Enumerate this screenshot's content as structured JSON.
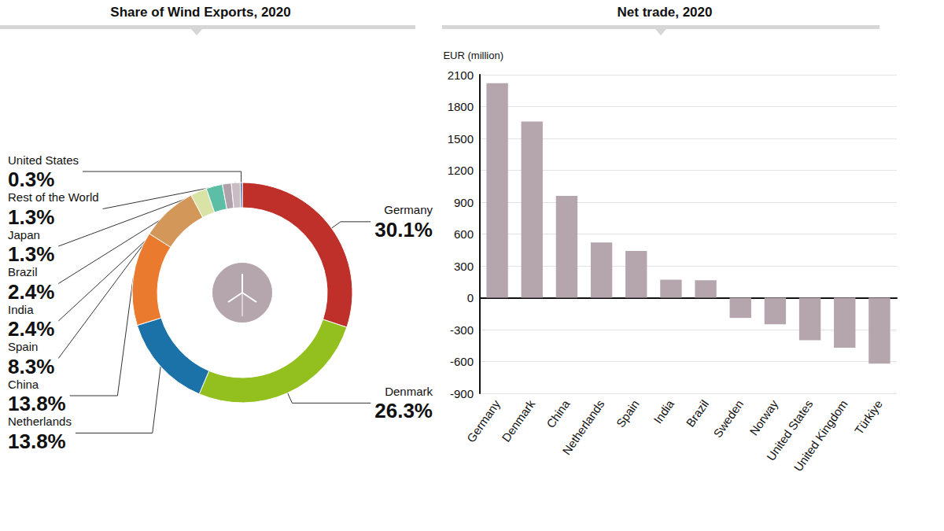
{
  "chart_data": [
    {
      "type": "pie",
      "title": "Share of Wind Exports, 2020",
      "categories": [
        "Germany",
        "Denmark",
        "Netherlands",
        "China",
        "Spain",
        "India",
        "Brazil",
        "Japan",
        "Rest of the World",
        "United States"
      ],
      "values": [
        30.1,
        26.3,
        13.8,
        13.8,
        8.3,
        2.4,
        2.4,
        1.3,
        1.3,
        0.3
      ],
      "value_labels": [
        "30.1%",
        "26.3%",
        "13.8%",
        "13.8%",
        "8.3%",
        "2.4%",
        "2.4%",
        "1.3%",
        "1.3%",
        "0.3%"
      ],
      "colors": [
        "#c0302b",
        "#93c01f",
        "#1a72a8",
        "#ea7b2e",
        "#d4975a",
        "#d9e3a5",
        "#5cbfa5",
        "#b0a0a8",
        "#c9bcc4",
        "#4a6fa5"
      ],
      "data_labels": true
    },
    {
      "type": "bar",
      "title": "Net trade, 2020",
      "y_label": "EUR (million)",
      "categories": [
        "Germany",
        "Denmark",
        "China",
        "Netherlands",
        "Spain",
        "India",
        "Brazil",
        "Sweden",
        "Norway",
        "United States",
        "United Kingdom",
        "Türkiye"
      ],
      "values": [
        2020,
        1660,
        960,
        520,
        440,
        170,
        165,
        -190,
        -250,
        -400,
        -470,
        -620
      ],
      "color": "#b5a6ad",
      "ylim": [
        -900,
        2100
      ],
      "yticks": [
        -900,
        -600,
        -300,
        0,
        300,
        600,
        900,
        1200,
        1500,
        1800,
        2100
      ],
      "grid": true
    }
  ]
}
